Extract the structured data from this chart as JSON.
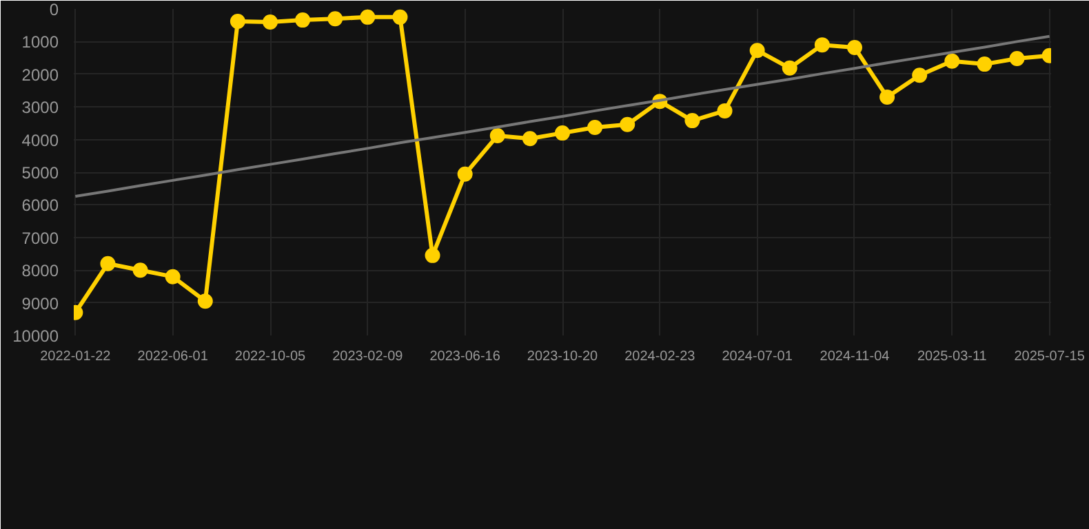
{
  "chart_data": {
    "type": "line",
    "categories": [
      "2022-01-22",
      null,
      null,
      "2022-06-01",
      null,
      null,
      "2022-10-05",
      null,
      null,
      "2023-02-09",
      null,
      null,
      "2023-06-16",
      null,
      null,
      "2023-10-20",
      null,
      null,
      "2024-02-23",
      null,
      null,
      "2024-07-01",
      null,
      null,
      "2024-11-04",
      null,
      null,
      "2025-03-11",
      null,
      null,
      "2025-07-15"
    ],
    "series": [
      {
        "color": "#ffd100",
        "marker": "circle",
        "values": [
          9300,
          7800,
          8000,
          8200,
          8950,
          380,
          400,
          340,
          300,
          250,
          250,
          7550,
          5060,
          3880,
          3970,
          3800,
          3630,
          3540,
          2830,
          3420,
          3120,
          1270,
          1810,
          1100,
          1180,
          2700,
          2030,
          1600,
          1690,
          1520,
          1430
        ]
      },
      {
        "type": "line",
        "color": "#777777",
        "marker": "none",
        "values": [
          5740,
          5580,
          5410,
          5250,
          5090,
          4920,
          4760,
          4600,
          4430,
          4270,
          4100,
          3940,
          3780,
          3620,
          3450,
          3290,
          3120,
          2960,
          2800,
          2630,
          2470,
          2310,
          2150,
          1980,
          1820,
          1650,
          1490,
          1330,
          1170,
          1000,
          840
        ]
      }
    ],
    "ylim": [
      10000,
      0
    ],
    "yticks": [
      0,
      1000,
      2000,
      3000,
      4000,
      5000,
      6000,
      7000,
      8000,
      9000,
      10000
    ],
    "grid": true
  }
}
